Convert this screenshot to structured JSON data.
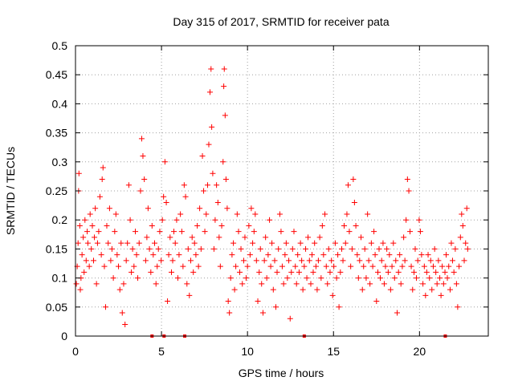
{
  "chart_data": {
    "type": "scatter",
    "title": "Day 315 of 2017, SRMTID for receiver pata",
    "xlabel": "GPS time / hours",
    "ylabel": "SRMTID / TECUs",
    "xlim": [
      0,
      24
    ],
    "ylim": [
      0,
      0.5
    ],
    "xticks": [
      0,
      5,
      10,
      15,
      20
    ],
    "xtick_labels": [
      "0",
      "5",
      "10",
      "15",
      "20"
    ],
    "yticks": [
      0,
      0.05,
      0.1,
      0.15,
      0.2,
      0.25,
      0.3,
      0.35,
      0.4,
      0.45,
      0.5
    ],
    "ytick_labels": [
      "0",
      "0.05",
      "0.1",
      "0.15",
      "0.2",
      "0.25",
      "0.3",
      "0.35",
      "0.4",
      "0.45",
      "0.5"
    ],
    "grid": true,
    "legend": "none",
    "marker": "+",
    "color": "#ff0000",
    "series": [
      {
        "name": "SRMTID",
        "points": [
          [
            0.05,
            0.09
          ],
          [
            0.1,
            0.12
          ],
          [
            0.15,
            0.16
          ],
          [
            0.18,
            0.25
          ],
          [
            0.2,
            0.28
          ],
          [
            0.25,
            0.19
          ],
          [
            0.28,
            0.08
          ],
          [
            0.32,
            0.1
          ],
          [
            0.38,
            0.14
          ],
          [
            0.45,
            0.17
          ],
          [
            0.5,
            0.11
          ],
          [
            0.55,
            0.2
          ],
          [
            0.62,
            0.13
          ],
          [
            0.68,
            0.18
          ],
          [
            0.72,
            0.16
          ],
          [
            0.8,
            0.12
          ],
          [
            0.85,
            0.21
          ],
          [
            0.92,
            0.15
          ],
          [
            0.98,
            0.19
          ],
          [
            1.05,
            0.13
          ],
          [
            1.1,
            0.17
          ],
          [
            1.15,
            0.22
          ],
          [
            1.22,
            0.09
          ],
          [
            1.28,
            0.16
          ],
          [
            1.35,
            0.18
          ],
          [
            1.42,
            0.24
          ],
          [
            1.5,
            0.14
          ],
          [
            1.55,
            0.27
          ],
          [
            1.6,
            0.29
          ],
          [
            1.68,
            0.12
          ],
          [
            1.75,
            0.05
          ],
          [
            1.82,
            0.19
          ],
          [
            1.9,
            0.16
          ],
          [
            1.98,
            0.22
          ],
          [
            2.05,
            0.13
          ],
          [
            2.12,
            0.15
          ],
          [
            2.2,
            0.1
          ],
          [
            2.28,
            0.18
          ],
          [
            2.35,
            0.21
          ],
          [
            2.42,
            0.14
          ],
          [
            2.5,
            0.12
          ],
          [
            2.58,
            0.08
          ],
          [
            2.65,
            0.16
          ],
          [
            2.72,
            0.04
          ],
          [
            2.8,
            0.09
          ],
          [
            2.88,
            0.02
          ],
          [
            2.95,
            0.13
          ],
          [
            3.02,
            0.16
          ],
          [
            3.1,
            0.26
          ],
          [
            3.18,
            0.2
          ],
          [
            3.25,
            0.11
          ],
          [
            3.32,
            0.15
          ],
          [
            3.4,
            0.12
          ],
          [
            3.48,
            0.18
          ],
          [
            3.55,
            0.14
          ],
          [
            3.62,
            0.1
          ],
          [
            3.7,
            0.16
          ],
          [
            3.78,
            0.25
          ],
          [
            3.85,
            0.34
          ],
          [
            3.92,
            0.31
          ],
          [
            4.0,
            0.27
          ],
          [
            4.08,
            0.13
          ],
          [
            4.15,
            0.17
          ],
          [
            4.22,
            0.22
          ],
          [
            4.3,
            0.15
          ],
          [
            4.38,
            0.11
          ],
          [
            4.45,
            0.19
          ],
          [
            4.52,
            0.14
          ],
          [
            4.6,
            0.16
          ],
          [
            4.68,
            0.09
          ],
          [
            4.75,
            0.12
          ],
          [
            4.82,
            0.15
          ],
          [
            4.9,
            0.18
          ],
          [
            4.98,
            0.13
          ],
          [
            5.05,
            0.2
          ],
          [
            5.12,
            0.24
          ],
          [
            5.2,
            0.3
          ],
          [
            5.28,
            0.23
          ],
          [
            5.35,
            0.06
          ],
          [
            5.42,
            0.14
          ],
          [
            5.5,
            0.17
          ],
          [
            5.58,
            0.11
          ],
          [
            5.65,
            0.13
          ],
          [
            5.72,
            0.18
          ],
          [
            5.8,
            0.16
          ],
          [
            5.88,
            0.2
          ],
          [
            5.95,
            0.1
          ],
          [
            6.02,
            0.14
          ],
          [
            6.1,
            0.21
          ],
          [
            6.18,
            0.18
          ],
          [
            6.25,
            0.12
          ],
          [
            6.32,
            0.26
          ],
          [
            6.4,
            0.24
          ],
          [
            6.48,
            0.09
          ],
          [
            6.55,
            0.15
          ],
          [
            6.62,
            0.07
          ],
          [
            6.7,
            0.13
          ],
          [
            6.78,
            0.17
          ],
          [
            6.85,
            0.11
          ],
          [
            6.92,
            0.16
          ],
          [
            7.0,
            0.14
          ],
          [
            7.08,
            0.19
          ],
          [
            7.15,
            0.12
          ],
          [
            7.22,
            0.22
          ],
          [
            7.3,
            0.15
          ],
          [
            7.38,
            0.31
          ],
          [
            7.45,
            0.25
          ],
          [
            7.52,
            0.18
          ],
          [
            7.6,
            0.21
          ],
          [
            7.68,
            0.26
          ],
          [
            7.75,
            0.33
          ],
          [
            7.82,
            0.42
          ],
          [
            7.88,
            0.46
          ],
          [
            7.92,
            0.36
          ],
          [
            7.98,
            0.28
          ],
          [
            8.05,
            0.15
          ],
          [
            8.12,
            0.2
          ],
          [
            8.2,
            0.26
          ],
          [
            8.28,
            0.23
          ],
          [
            8.35,
            0.17
          ],
          [
            8.42,
            0.12
          ],
          [
            8.5,
            0.19
          ],
          [
            8.58,
            0.3
          ],
          [
            8.62,
            0.43
          ],
          [
            8.65,
            0.46
          ],
          [
            8.7,
            0.38
          ],
          [
            8.75,
            0.27
          ],
          [
            8.82,
            0.22
          ],
          [
            8.88,
            0.06
          ],
          [
            8.95,
            0.04
          ],
          [
            9.02,
            0.1
          ],
          [
            9.1,
            0.14
          ],
          [
            9.18,
            0.16
          ],
          [
            9.25,
            0.08
          ],
          [
            9.32,
            0.12
          ],
          [
            9.4,
            0.21
          ],
          [
            9.48,
            0.18
          ],
          [
            9.55,
            0.11
          ],
          [
            9.62,
            0.15
          ],
          [
            9.7,
            0.09
          ],
          [
            9.78,
            0.13
          ],
          [
            9.85,
            0.17
          ],
          [
            9.92,
            0.1
          ],
          [
            10.0,
            0.12
          ],
          [
            10.08,
            0.19
          ],
          [
            10.15,
            0.14
          ],
          [
            10.22,
            0.22
          ],
          [
            10.3,
            0.16
          ],
          [
            10.38,
            0.18
          ],
          [
            10.45,
            0.21
          ],
          [
            10.52,
            0.13
          ],
          [
            10.6,
            0.06
          ],
          [
            10.68,
            0.11
          ],
          [
            10.75,
            0.15
          ],
          [
            10.82,
            0.09
          ],
          [
            10.9,
            0.04
          ],
          [
            10.98,
            0.13
          ],
          [
            11.05,
            0.17
          ],
          [
            11.12,
            0.1
          ],
          [
            11.2,
            0.14
          ],
          [
            11.28,
            0.2
          ],
          [
            11.35,
            0.12
          ],
          [
            11.42,
            0.16
          ],
          [
            11.5,
            0.08
          ],
          [
            11.58,
            0.13
          ],
          [
            11.65,
            0.05
          ],
          [
            11.72,
            0.11
          ],
          [
            11.8,
            0.15
          ],
          [
            11.88,
            0.21
          ],
          [
            11.95,
            0.18
          ],
          [
            12.02,
            0.12
          ],
          [
            12.1,
            0.09
          ],
          [
            12.18,
            0.14
          ],
          [
            12.25,
            0.16
          ],
          [
            12.32,
            0.1
          ],
          [
            12.4,
            0.13
          ],
          [
            12.48,
            0.03
          ],
          [
            12.55,
            0.11
          ],
          [
            12.62,
            0.15
          ],
          [
            12.7,
            0.18
          ],
          [
            12.78,
            0.12
          ],
          [
            12.85,
            0.09
          ],
          [
            12.92,
            0.14
          ],
          [
            13.0,
            0.11
          ],
          [
            13.08,
            0.16
          ],
          [
            13.15,
            0.13
          ],
          [
            13.22,
            0.08
          ],
          [
            13.3,
            0.12
          ],
          [
            13.38,
            0.15
          ],
          [
            13.45,
            0.1
          ],
          [
            13.52,
            0.17
          ],
          [
            13.6,
            0.13
          ],
          [
            13.68,
            0.09
          ],
          [
            13.75,
            0.14
          ],
          [
            13.82,
            0.11
          ],
          [
            13.9,
            0.16
          ],
          [
            13.98,
            0.12
          ],
          [
            14.05,
            0.08
          ],
          [
            14.12,
            0.13
          ],
          [
            14.2,
            0.17
          ],
          [
            14.28,
            0.1
          ],
          [
            14.35,
            0.19
          ],
          [
            14.42,
            0.14
          ],
          [
            14.5,
            0.21
          ],
          [
            14.58,
            0.12
          ],
          [
            14.65,
            0.09
          ],
          [
            14.72,
            0.15
          ],
          [
            14.8,
            0.11
          ],
          [
            14.88,
            0.13
          ],
          [
            14.95,
            0.07
          ],
          [
            15.02,
            0.12
          ],
          [
            15.1,
            0.16
          ],
          [
            15.18,
            0.1
          ],
          [
            15.25,
            0.14
          ],
          [
            15.32,
            0.05
          ],
          [
            15.4,
            0.11
          ],
          [
            15.48,
            0.15
          ],
          [
            15.55,
            0.13
          ],
          [
            15.62,
            0.19
          ],
          [
            15.7,
            0.16
          ],
          [
            15.78,
            0.21
          ],
          [
            15.85,
            0.26
          ],
          [
            15.92,
            0.18
          ],
          [
            16.0,
            0.12
          ],
          [
            16.08,
            0.15
          ],
          [
            16.15,
            0.27
          ],
          [
            16.22,
            0.23
          ],
          [
            16.3,
            0.19
          ],
          [
            16.38,
            0.14
          ],
          [
            16.45,
            0.1
          ],
          [
            16.52,
            0.13
          ],
          [
            16.6,
            0.17
          ],
          [
            16.68,
            0.08
          ],
          [
            16.75,
            0.12
          ],
          [
            16.82,
            0.15
          ],
          [
            16.9,
            0.1
          ],
          [
            16.98,
            0.21
          ],
          [
            17.05,
            0.13
          ],
          [
            17.12,
            0.09
          ],
          [
            17.2,
            0.16
          ],
          [
            17.28,
            0.12
          ],
          [
            17.35,
            0.18
          ],
          [
            17.42,
            0.14
          ],
          [
            17.5,
            0.06
          ],
          [
            17.58,
            0.11
          ],
          [
            17.65,
            0.15
          ],
          [
            17.72,
            0.1
          ],
          [
            17.8,
            0.13
          ],
          [
            17.88,
            0.16
          ],
          [
            17.95,
            0.09
          ],
          [
            18.02,
            0.12
          ],
          [
            18.1,
            0.15
          ],
          [
            18.18,
            0.11
          ],
          [
            18.25,
            0.14
          ],
          [
            18.32,
            0.08
          ],
          [
            18.4,
            0.12
          ],
          [
            18.48,
            0.16
          ],
          [
            18.55,
            0.1
          ],
          [
            18.62,
            0.13
          ],
          [
            18.7,
            0.04
          ],
          [
            18.78,
            0.11
          ],
          [
            18.85,
            0.14
          ],
          [
            18.92,
            0.09
          ],
          [
            19.0,
            0.12
          ],
          [
            19.08,
            0.17
          ],
          [
            19.15,
            0.13
          ],
          [
            19.22,
            0.2
          ],
          [
            19.3,
            0.27
          ],
          [
            19.38,
            0.25
          ],
          [
            19.45,
            0.18
          ],
          [
            19.52,
            0.12
          ],
          [
            19.6,
            0.08
          ],
          [
            19.68,
            0.11
          ],
          [
            19.75,
            0.15
          ],
          [
            19.82,
            0.1
          ],
          [
            19.9,
            0.13
          ],
          [
            19.98,
            0.2
          ],
          [
            20.05,
            0.18
          ],
          [
            20.12,
            0.14
          ],
          [
            20.2,
            0.09
          ],
          [
            20.28,
            0.12
          ],
          [
            20.35,
            0.07
          ],
          [
            20.42,
            0.11
          ],
          [
            20.5,
            0.14
          ],
          [
            20.58,
            0.1
          ],
          [
            20.65,
            0.13
          ],
          [
            20.72,
            0.08
          ],
          [
            20.8,
            0.12
          ],
          [
            20.88,
            0.15
          ],
          [
            20.95,
            0.11
          ],
          [
            21.02,
            0.09
          ],
          [
            21.1,
            0.13
          ],
          [
            21.18,
            0.1
          ],
          [
            21.25,
            0.07
          ],
          [
            21.32,
            0.12
          ],
          [
            21.4,
            0.09
          ],
          [
            21.48,
            0.11
          ],
          [
            21.55,
            0.14
          ],
          [
            21.62,
            0.1
          ],
          [
            21.7,
            0.12
          ],
          [
            21.78,
            0.08
          ],
          [
            21.85,
            0.16
          ],
          [
            21.92,
            0.13
          ],
          [
            22.0,
            0.11
          ],
          [
            22.08,
            0.15
          ],
          [
            22.15,
            0.09
          ],
          [
            22.22,
            0.05
          ],
          [
            22.3,
            0.12
          ],
          [
            22.38,
            0.17
          ],
          [
            22.45,
            0.21
          ],
          [
            22.52,
            0.19
          ],
          [
            22.6,
            0.13
          ],
          [
            22.68,
            0.16
          ],
          [
            22.75,
            0.22
          ],
          [
            22.8,
            0.15
          ]
        ]
      }
    ],
    "gap_markers_x": [
      4.45,
      5.15,
      6.35,
      13.3,
      21.5
    ]
  }
}
